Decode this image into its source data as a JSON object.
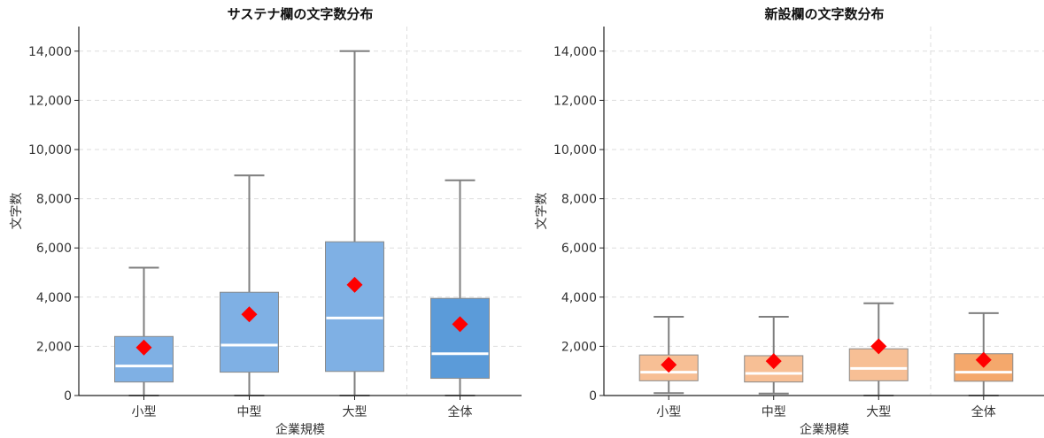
{
  "colors": {
    "sustain_box": "#7fb0e4",
    "sustain_box_total": "#5b9bd9",
    "new_box": "#f7bf95",
    "new_box_total": "#f4a86c",
    "whisker": "#7f7f7f",
    "median": "#ffffff",
    "mean_marker": "#ff0000",
    "grid": "#dddddd",
    "axis": "#222222"
  },
  "chart_data": [
    {
      "type": "box",
      "title": "サステナ欄の文字数分布",
      "xlabel": "企業規模",
      "ylabel": "文字数",
      "ylim": [
        0,
        15000
      ],
      "yticks": [
        0,
        2000,
        4000,
        6000,
        8000,
        10000,
        12000,
        14000
      ],
      "ytick_labels": [
        "0",
        "2,000",
        "4,000",
        "6,000",
        "8,000",
        "10,000",
        "12,000",
        "14,000"
      ],
      "grid": true,
      "categories": [
        "小型",
        "中型",
        "大型",
        "全体"
      ],
      "boxes": [
        {
          "whisker_low": 0,
          "q1": 550,
          "median": 1200,
          "q3": 2400,
          "whisker_high": 5200,
          "mean": 1950
        },
        {
          "whisker_low": 0,
          "q1": 950,
          "median": 2050,
          "q3": 4200,
          "whisker_high": 8950,
          "mean": 3300
        },
        {
          "whisker_low": 0,
          "q1": 980,
          "median": 3150,
          "q3": 6250,
          "whisker_high": 14000,
          "mean": 4500
        },
        {
          "whisker_low": 0,
          "q1": 700,
          "median": 1700,
          "q3": 3950,
          "whisker_high": 8750,
          "mean": 2900
        }
      ]
    },
    {
      "type": "box",
      "title": "新設欄の文字数分布",
      "xlabel": "企業規模",
      "ylabel": "文字数",
      "ylim": [
        0,
        15000
      ],
      "yticks": [
        0,
        2000,
        4000,
        6000,
        8000,
        10000,
        12000,
        14000
      ],
      "ytick_labels": [
        "0",
        "2,000",
        "4,000",
        "6,000",
        "8,000",
        "10,000",
        "12,000",
        "14,000"
      ],
      "grid": true,
      "categories": [
        "小型",
        "中型",
        "大型",
        "全体"
      ],
      "boxes": [
        {
          "whisker_low": 100,
          "q1": 600,
          "median": 950,
          "q3": 1650,
          "whisker_high": 3200,
          "mean": 1250
        },
        {
          "whisker_low": 80,
          "q1": 550,
          "median": 900,
          "q3": 1620,
          "whisker_high": 3200,
          "mean": 1400
        },
        {
          "whisker_low": 0,
          "q1": 600,
          "median": 1100,
          "q3": 1900,
          "whisker_high": 3750,
          "mean": 2000
        },
        {
          "whisker_low": 0,
          "q1": 580,
          "median": 950,
          "q3": 1700,
          "whisker_high": 3350,
          "mean": 1450
        }
      ]
    }
  ]
}
